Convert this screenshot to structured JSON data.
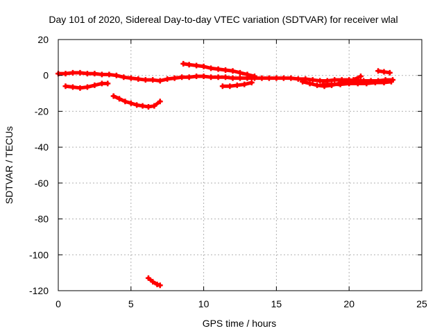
{
  "chart_data": {
    "type": "scatter",
    "title": "Day 101 of 2020, Sidereal Day-to-day VTEC variation (SDTVAR) for receiver wlal",
    "xlabel": "GPS time / hours",
    "ylabel": "SDTVAR / TECUs",
    "xlim": [
      0,
      25
    ],
    "ylim": [
      -120,
      20
    ],
    "xticks": [
      "0",
      "5",
      "10",
      "15",
      "20",
      "25"
    ],
    "yticks": [
      "20",
      "0",
      "-20",
      "-40",
      "-60",
      "-80",
      "-100",
      "-120"
    ],
    "grid": true,
    "marker_color": "#ff0000",
    "series": [
      {
        "x": [
          0.0,
          0.5,
          1.0,
          1.5,
          2.0,
          2.5,
          3.0,
          3.5,
          4.0,
          4.5,
          5.0,
          5.5,
          6.0,
          6.5,
          7.0,
          7.5,
          8.0,
          8.5,
          9.0,
          9.5,
          10.0,
          10.5,
          11.0,
          11.5,
          12.0,
          12.5,
          13.0,
          13.5,
          14.0,
          14.5,
          15.0,
          15.5,
          16.0,
          16.5,
          17.0,
          17.5,
          18.0,
          18.5,
          19.0,
          19.5,
          20.0,
          20.5,
          21.0,
          21.5,
          22.0,
          22.5,
          23.0
        ],
        "y": [
          1.0,
          1.0,
          1.5,
          1.5,
          1.0,
          1.0,
          0.5,
          0.5,
          0.0,
          -1.0,
          -1.5,
          -2.0,
          -2.5,
          -2.5,
          -3.0,
          -2.0,
          -1.5,
          -1.0,
          -1.0,
          -0.5,
          -0.5,
          -1.0,
          -1.0,
          -1.0,
          -1.5,
          -1.5,
          -1.5,
          -1.5,
          -1.5,
          -1.5,
          -1.5,
          -1.5,
          -1.5,
          -2.0,
          -2.0,
          -2.5,
          -3.0,
          -3.0,
          -2.5,
          -2.5,
          -2.5,
          -3.0,
          -3.0,
          -3.0,
          -3.0,
          -2.5,
          -2.5
        ]
      },
      {
        "x": [
          0.5,
          1.0,
          1.5,
          2.0,
          2.5,
          3.0,
          3.4
        ],
        "y": [
          -6.0,
          -6.5,
          -7.0,
          -6.5,
          -5.5,
          -4.5,
          -4.5
        ]
      },
      {
        "x": [
          3.8,
          4.2,
          4.6,
          5.0,
          5.4,
          5.8,
          6.2,
          6.6,
          7.0
        ],
        "y": [
          -11.5,
          -13.0,
          -14.5,
          -15.5,
          -16.5,
          -17.0,
          -17.5,
          -17.0,
          -14.5
        ]
      },
      {
        "x": [
          8.6,
          9.0,
          9.5,
          10.0,
          10.5,
          11.0,
          11.5,
          12.0,
          12.5,
          13.0,
          13.5
        ],
        "y": [
          6.5,
          6.0,
          5.5,
          5.0,
          4.0,
          3.5,
          3.0,
          2.5,
          1.5,
          0.5,
          -0.5
        ]
      },
      {
        "x": [
          11.3,
          11.8,
          12.3,
          12.8,
          13.3
        ],
        "y": [
          -6.0,
          -6.0,
          -5.5,
          -5.0,
          -4.0
        ]
      },
      {
        "x": [
          16.8,
          17.3,
          17.8,
          18.3,
          18.8,
          19.3,
          19.8,
          20.3,
          20.8
        ],
        "y": [
          -3.5,
          -4.5,
          -5.5,
          -6.0,
          -5.5,
          -4.5,
          -3.5,
          -2.5,
          -0.5
        ]
      },
      {
        "x": [
          18.2,
          18.8,
          19.4,
          20.0,
          20.6,
          21.2,
          21.8,
          22.4,
          22.9
        ],
        "y": [
          -5.0,
          -5.0,
          -5.0,
          -4.5,
          -4.5,
          -4.5,
          -4.0,
          -4.0,
          -3.5
        ]
      },
      {
        "x": [
          22.0,
          22.4,
          22.8
        ],
        "y": [
          2.5,
          2.0,
          1.5
        ]
      },
      {
        "x": [
          6.2,
          6.5,
          6.8,
          7.0
        ],
        "y": [
          -113.0,
          -115.0,
          -116.5,
          -117.0
        ]
      }
    ]
  }
}
